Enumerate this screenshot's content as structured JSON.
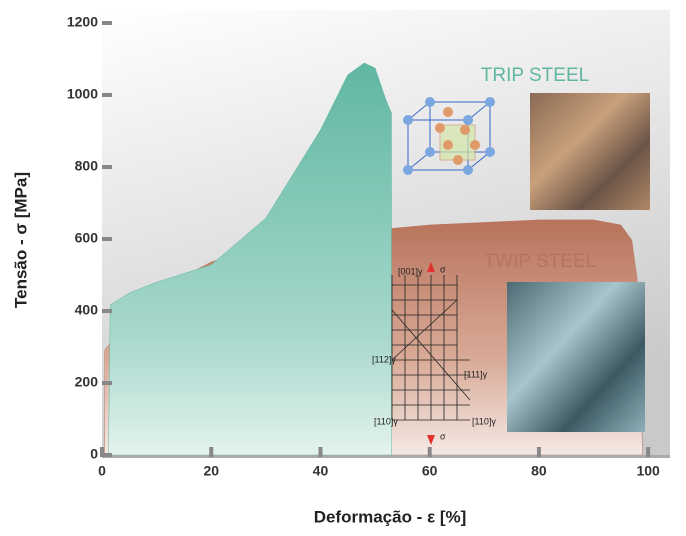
{
  "chart_data": {
    "type": "area",
    "xlabel": "Deformação - ε [%]",
    "ylabel": "Tensão - σ [MPa]",
    "xlim": [
      0,
      104
    ],
    "ylim": [
      0,
      1200
    ],
    "xticks": [
      0,
      20,
      40,
      60,
      80,
      100
    ],
    "yticks": [
      0,
      200,
      400,
      600,
      800,
      1000,
      1200
    ],
    "series": [
      {
        "name": "TWIP STEEL",
        "color": "#b8735c",
        "x": [
          0.5,
          0.5,
          5,
          10,
          20,
          30,
          40,
          60,
          80,
          90,
          95,
          97,
          98,
          99
        ],
        "values": [
          0,
          292,
          375,
          458,
          536,
          583,
          611,
          639,
          653,
          653,
          639,
          597,
          486,
          0
        ]
      },
      {
        "name": "TRIP STEEL",
        "color": "#5fb7a2",
        "x": [
          1.2,
          1.5,
          5,
          10,
          20,
          30,
          40,
          45,
          48,
          50,
          52,
          53,
          53
        ],
        "values": [
          0,
          417,
          450,
          480,
          528,
          658,
          903,
          1056,
          1089,
          1075,
          986,
          950,
          0
        ]
      }
    ],
    "annotations": [
      "[001]γ",
      "σ",
      "[112]γ",
      "[111]γ",
      "[110]γ",
      "[110]γ",
      "σ"
    ]
  }
}
